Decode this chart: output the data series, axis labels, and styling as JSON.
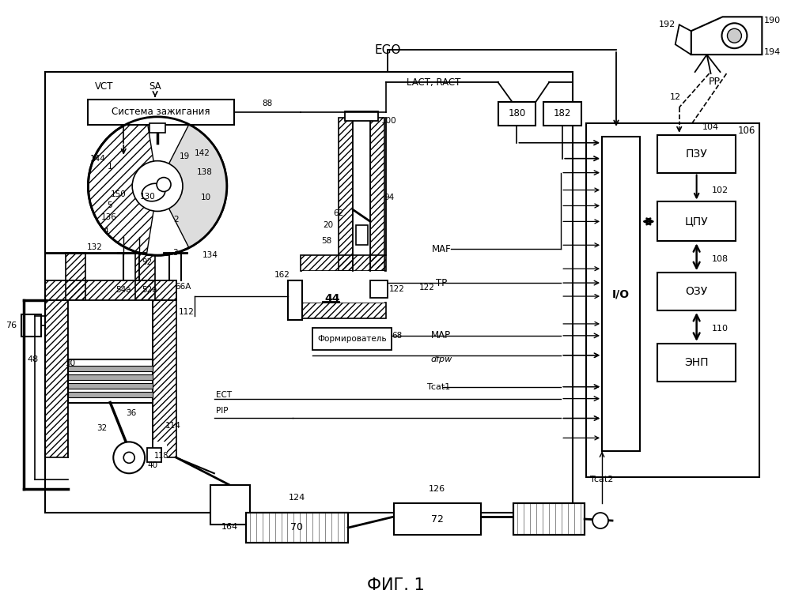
{
  "bg": "#ffffff",
  "fw": 10.0,
  "fh": 7.76,
  "title": "ФИГ. 1",
  "sysZazh": "Система зажигания",
  "form": "Формирователь",
  "pzu": "ПЗУ",
  "cpu": "ЦПУ",
  "ozu": "ОЗУ",
  "enp": "ЭНП",
  "io": "I/O",
  "ego": "EGO",
  "vct": "VCT",
  "sa": "SA",
  "lact": "LACT, RACT",
  "maf": "MAF",
  "tp": "TP",
  "map_s": "MAP",
  "dfpw": "dfpw",
  "tcat1": "Tcat1",
  "tcat2": "Tcat2",
  "pp": "PP"
}
